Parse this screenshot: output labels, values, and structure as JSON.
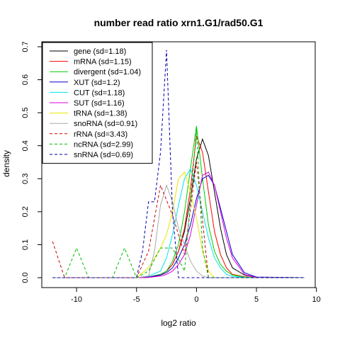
{
  "chart_data": {
    "type": "line",
    "title": "number read ratio xrn1.G1/rad50.G1",
    "xlabel": "log2 ratio",
    "ylabel": "density",
    "xlim": [
      -12.9,
      9.9
    ],
    "ylim": [
      -0.03,
      0.715
    ],
    "x_ticks": [
      -10,
      -5,
      0,
      5,
      10
    ],
    "y_ticks": [
      0.0,
      0.1,
      0.2,
      0.3,
      0.4,
      0.5,
      0.6,
      0.7
    ],
    "grid": false,
    "legend_position": "top-left",
    "series": [
      {
        "name": "gene (sd=1.18)",
        "color": "#000000",
        "dash": "solid",
        "x": [
          -12,
          -5,
          -4,
          -3,
          -2.5,
          -2,
          -1.5,
          -1,
          -0.5,
          0,
          0.5,
          1,
          1.5,
          2,
          2.5,
          3,
          4,
          5,
          9
        ],
        "y": [
          0,
          0,
          0.002,
          0.01,
          0.02,
          0.04,
          0.08,
          0.14,
          0.24,
          0.36,
          0.42,
          0.37,
          0.26,
          0.15,
          0.07,
          0.03,
          0.008,
          0.001,
          0
        ]
      },
      {
        "name": "mRNA (sd=1.15)",
        "color": "#ff0000",
        "dash": "solid",
        "x": [
          -12,
          -5,
          -4,
          -3,
          -2.5,
          -2,
          -1.5,
          -1,
          -0.5,
          0,
          0.5,
          1,
          1.5,
          2,
          2.5,
          3,
          4,
          5,
          9
        ],
        "y": [
          0,
          0,
          0.001,
          0.008,
          0.02,
          0.04,
          0.08,
          0.15,
          0.27,
          0.43,
          0.38,
          0.26,
          0.14,
          0.07,
          0.03,
          0.01,
          0.003,
          0,
          0
        ]
      },
      {
        "name": "divergent (sd=1.04)",
        "color": "#00cc00",
        "dash": "solid",
        "x": [
          -12,
          -5,
          -4,
          -3,
          -2.5,
          -2,
          -1.5,
          -1,
          -0.5,
          0,
          0.5,
          1,
          1.5,
          2,
          2.5,
          3,
          4,
          5,
          9
        ],
        "y": [
          0,
          0,
          0.002,
          0.01,
          0.02,
          0.05,
          0.1,
          0.2,
          0.33,
          0.46,
          0.3,
          0.16,
          0.08,
          0.04,
          0.02,
          0.008,
          0.002,
          0,
          0
        ]
      },
      {
        "name": "XUT (sd=1.2)",
        "color": "#0000cc",
        "dash": "solid",
        "x": [
          -12,
          -5,
          -4,
          -3,
          -2.5,
          -2,
          -1.5,
          -1,
          -0.5,
          0,
          0.5,
          1,
          1.5,
          2,
          2.5,
          3,
          4,
          5,
          9
        ],
        "y": [
          0,
          0,
          0.002,
          0.008,
          0.015,
          0.03,
          0.06,
          0.1,
          0.16,
          0.24,
          0.3,
          0.31,
          0.28,
          0.21,
          0.14,
          0.07,
          0.015,
          0.002,
          0
        ]
      },
      {
        "name": "CUT (sd=1.18)",
        "color": "#00e5e5",
        "dash": "solid",
        "x": [
          -12,
          -5,
          -4,
          -3,
          -2.5,
          -2,
          -1.5,
          -1,
          -0.5,
          0,
          0.5,
          1,
          1.5,
          2,
          2.5,
          3,
          4,
          5,
          9
        ],
        "y": [
          0,
          0,
          0.005,
          0.02,
          0.06,
          0.13,
          0.22,
          0.3,
          0.33,
          0.28,
          0.2,
          0.12,
          0.06,
          0.03,
          0.01,
          0.004,
          0.001,
          0,
          0
        ]
      },
      {
        "name": "SUT (sd=1.16)",
        "color": "#dd00dd",
        "dash": "solid",
        "x": [
          -12,
          -5,
          -4,
          -3,
          -2.5,
          -2,
          -1.5,
          -1,
          -0.5,
          0,
          0.5,
          1,
          1.5,
          2,
          2.5,
          3,
          4,
          5,
          9
        ],
        "y": [
          0,
          0,
          0.001,
          0.005,
          0.01,
          0.02,
          0.04,
          0.07,
          0.13,
          0.22,
          0.31,
          0.32,
          0.28,
          0.2,
          0.12,
          0.06,
          0.01,
          0.001,
          0
        ]
      },
      {
        "name": "tRNA (sd=1.38)",
        "color": "#e6e600",
        "dash": "solid",
        "x": [
          -12,
          -5,
          -4,
          -3,
          -2.5,
          -2,
          -1.5,
          -1,
          -0.5,
          0,
          0.5,
          1,
          1.5,
          2,
          9
        ],
        "y": [
          0,
          0,
          0.03,
          0.09,
          0.13,
          0.2,
          0.3,
          0.32,
          0.26,
          0.18,
          0.08,
          0.02,
          0,
          0,
          0
        ]
      },
      {
        "name": "snoRNA (sd=0.91)",
        "color": "#aaaaaa",
        "dash": "solid",
        "x": [
          -12,
          -5,
          -4,
          -3.5,
          -3,
          -2.5,
          -2,
          -1.5,
          -1,
          -0.5,
          0,
          0.5,
          1,
          1.5,
          9
        ],
        "y": [
          0,
          0,
          0.005,
          0.08,
          0.22,
          0.28,
          0.23,
          0.15,
          0.1,
          0.05,
          0.02,
          0.005,
          0,
          0,
          0
        ]
      },
      {
        "name": "rRNA (sd=3.43)",
        "color": "#cc0000",
        "dash": "dashed",
        "x": [
          -12,
          -11,
          -10,
          -5,
          -4,
          -3,
          -2,
          -1,
          0,
          1,
          2,
          9
        ],
        "y": [
          0.11,
          0,
          0,
          0,
          0.08,
          0.28,
          0.19,
          0.07,
          0.35,
          0,
          0,
          0
        ]
      },
      {
        "name": "ncRNA (sd=2.99)",
        "color": "#00bb00",
        "dash": "dashed",
        "x": [
          -12,
          -11,
          -10,
          -9,
          -7,
          -6,
          -5,
          -4,
          -3,
          -2,
          -1,
          0,
          0.5,
          1,
          2,
          9
        ],
        "y": [
          0,
          0,
          0.09,
          0,
          0,
          0.09,
          0,
          0.02,
          0.09,
          0.09,
          0.02,
          0.45,
          0.09,
          0,
          0,
          0
        ]
      },
      {
        "name": "snRNA (sd=0.69)",
        "color": "#0000aa",
        "dash": "dashed",
        "x": [
          -12,
          -5,
          -4.5,
          -4,
          -3.5,
          -3,
          -2.5,
          -2,
          -1.5,
          -1,
          9
        ],
        "y": [
          0,
          0,
          0.08,
          0.23,
          0.23,
          0.38,
          0.69,
          0.2,
          0,
          0,
          0
        ]
      }
    ]
  }
}
